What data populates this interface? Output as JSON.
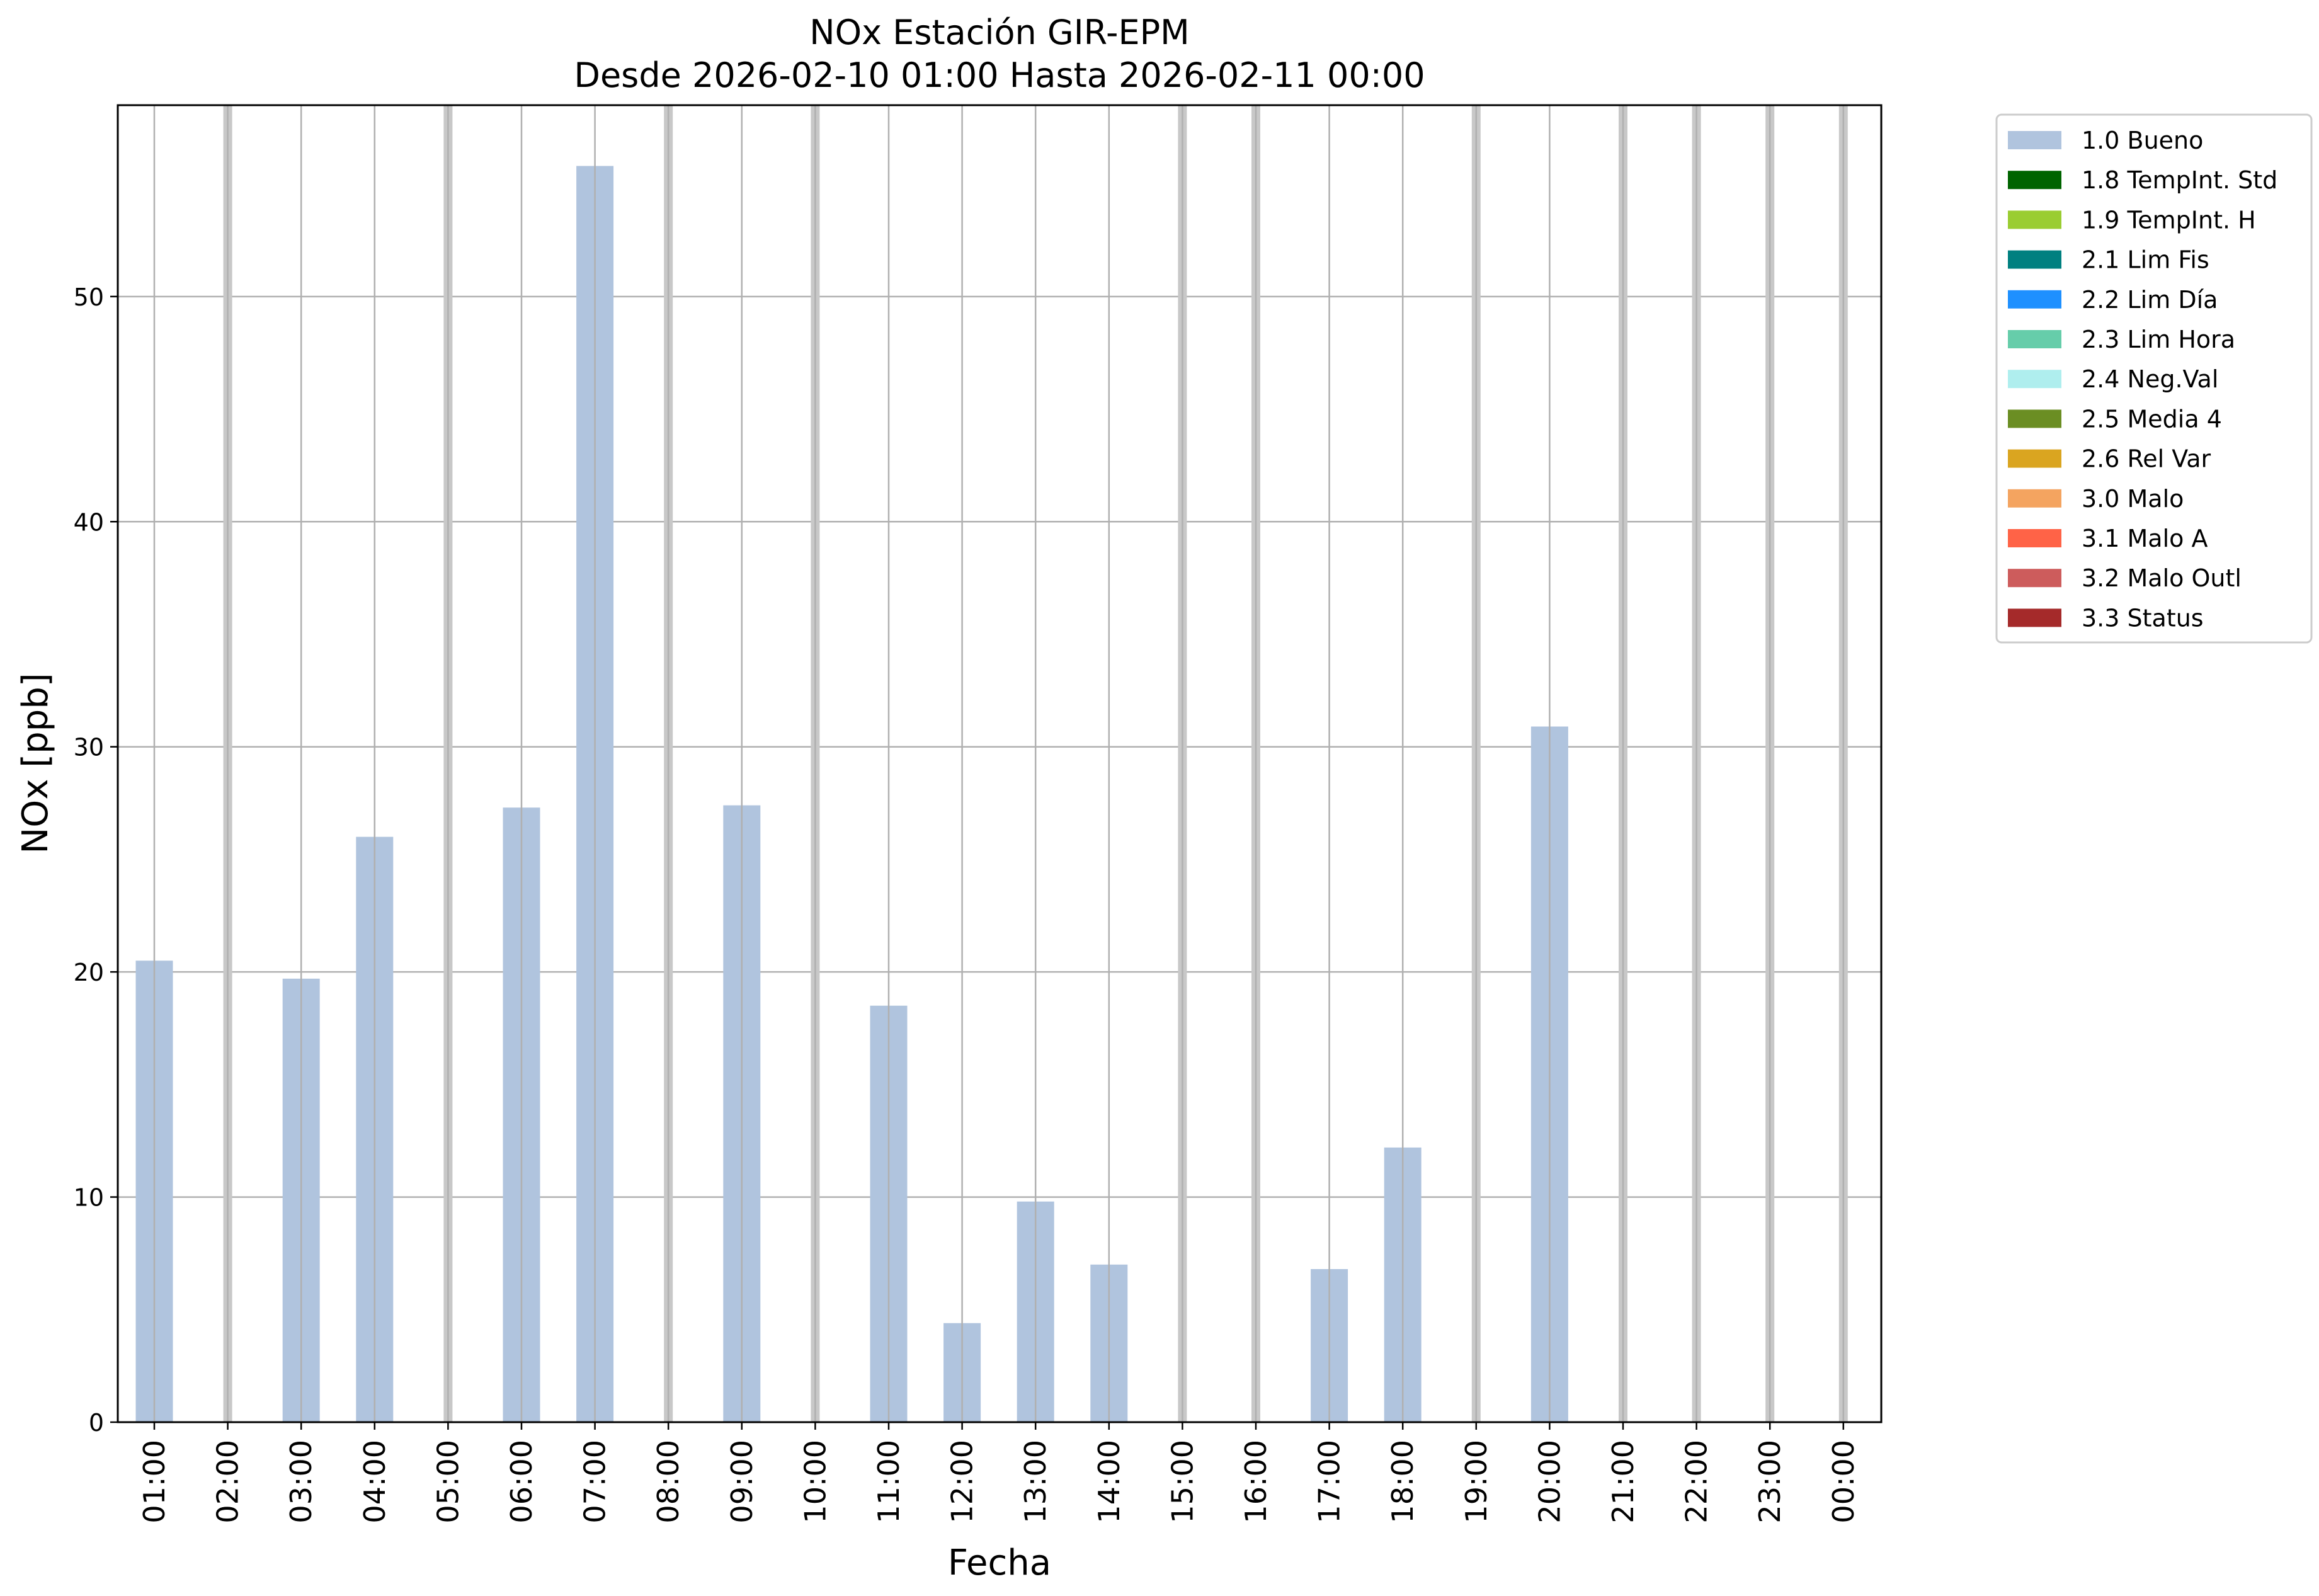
{
  "chart_data": {
    "type": "bar",
    "title": "NOx Estación GIR-EPM",
    "subtitle": "Desde 2026-02-10 01:00 Hasta 2026-02-11 00:00",
    "xlabel": "Fecha",
    "ylabel": "NOx [ppb]",
    "ylim": [
      0,
      58.5
    ],
    "yticks": [
      0,
      10,
      20,
      30,
      40,
      50
    ],
    "grid": true,
    "legend_position": "outside-right",
    "categories": [
      "01:00",
      "02:00",
      "03:00",
      "04:00",
      "05:00",
      "06:00",
      "07:00",
      "08:00",
      "09:00",
      "10:00",
      "11:00",
      "12:00",
      "13:00",
      "14:00",
      "15:00",
      "16:00",
      "17:00",
      "18:00",
      "19:00",
      "20:00",
      "21:00",
      "22:00",
      "23:00",
      "00:00"
    ],
    "series": [
      {
        "name": "1.0 Bueno",
        "color": "#b0c4de",
        "values": [
          20.5,
          null,
          19.7,
          26.0,
          null,
          27.3,
          55.8,
          null,
          27.4,
          null,
          18.5,
          4.4,
          9.8,
          7.0,
          null,
          null,
          6.8,
          12.2,
          null,
          30.9,
          null,
          null,
          null,
          null
        ]
      }
    ],
    "missing_hours": [
      "02:00",
      "05:00",
      "08:00",
      "10:00",
      "15:00",
      "16:00",
      "19:00",
      "21:00",
      "22:00",
      "23:00",
      "00:00"
    ],
    "missing_marker_color": "#c8c8c8",
    "legend": [
      {
        "label": "1.0 Bueno",
        "color": "#b0c4de"
      },
      {
        "label": "1.8 TempInt. Std",
        "color": "#006400"
      },
      {
        "label": "1.9 TempInt. H",
        "color": "#9acd32"
      },
      {
        "label": "2.1 Lim Fis",
        "color": "#008080"
      },
      {
        "label": "2.2 Lim Día",
        "color": "#1e90ff"
      },
      {
        "label": "2.3 Lim Hora",
        "color": "#66cdaa"
      },
      {
        "label": "2.4 Neg.Val",
        "color": "#afeeee"
      },
      {
        "label": "2.5 Media 4",
        "color": "#6b8e23"
      },
      {
        "label": "2.6 Rel Var",
        "color": "#daa520"
      },
      {
        "label": "3.0 Malo",
        "color": "#f4a460"
      },
      {
        "label": "3.1 Malo A",
        "color": "#ff6347"
      },
      {
        "label": "3.2 Malo Outl",
        "color": "#cd5c5c"
      },
      {
        "label": "3.3 Status",
        "color": "#a52a2a"
      }
    ]
  }
}
